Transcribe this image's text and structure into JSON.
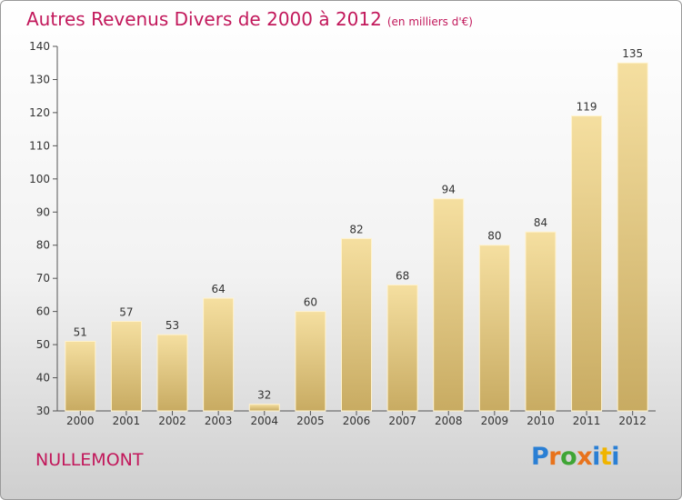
{
  "title": "Autres Revenus Divers de 2000 à 2012",
  "subtitle": "(en milliers d'€)",
  "location": "NULLEMONT",
  "logo": {
    "letters": [
      "P",
      "r",
      "o",
      "x",
      "i",
      "t",
      "i"
    ],
    "colors": [
      "#2a7fd4",
      "#e8731c",
      "#3fa535",
      "#e8731c",
      "#2a7fd4",
      "#f0b400",
      "#2a7fd4"
    ]
  },
  "colors": {
    "title": "#c2185b",
    "bar_light": "#f5dfa0",
    "bar_dark": "#c8ab62",
    "label": "#333333"
  },
  "chart_data": {
    "type": "bar",
    "categories": [
      "2000",
      "2001",
      "2002",
      "2003",
      "2004",
      "2005",
      "2006",
      "2007",
      "2008",
      "2009",
      "2010",
      "2011",
      "2012"
    ],
    "values": [
      51,
      57,
      53,
      64,
      32,
      60,
      82,
      68,
      94,
      80,
      84,
      119,
      135
    ],
    "ylim": [
      30,
      140
    ],
    "yticks": [
      30,
      40,
      50,
      60,
      70,
      80,
      90,
      100,
      110,
      120,
      130,
      140
    ],
    "grid": false,
    "legend": "none"
  }
}
